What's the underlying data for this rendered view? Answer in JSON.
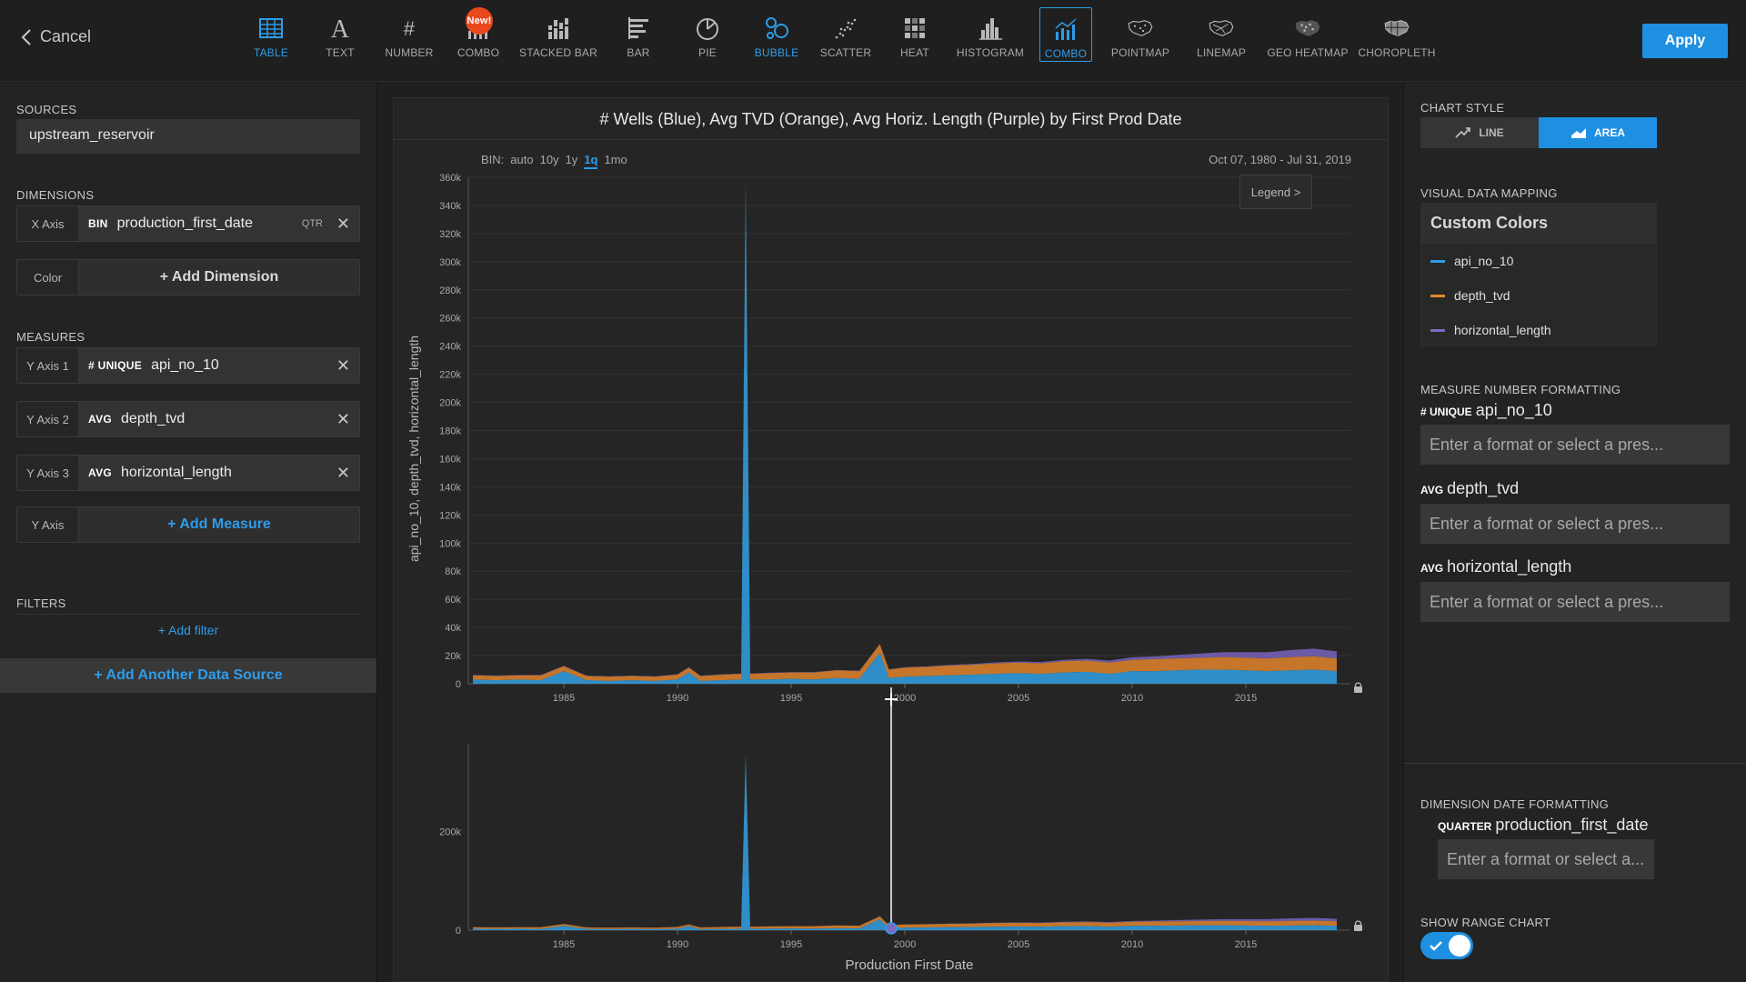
{
  "header": {
    "cancel_label": "Cancel",
    "apply_label": "Apply",
    "chart_types": [
      {
        "label": "TABLE",
        "icon": "table-icon"
      },
      {
        "label": "TEXT",
        "icon": "text-icon"
      },
      {
        "label": "NUMBER",
        "icon": "number-icon"
      },
      {
        "label": "COMBO",
        "icon": "combo-icon",
        "badge": "New!"
      },
      {
        "label": "STACKED BAR",
        "icon": "stacked-bar-icon"
      },
      {
        "label": "BAR",
        "icon": "bar-icon"
      },
      {
        "label": "PIE",
        "icon": "pie-icon"
      },
      {
        "label": "BUBBLE",
        "icon": "bubble-icon"
      },
      {
        "label": "SCATTER",
        "icon": "scatter-icon"
      },
      {
        "label": "HEAT",
        "icon": "heat-icon"
      },
      {
        "label": "HISTOGRAM",
        "icon": "histogram-icon"
      },
      {
        "label": "COMBO",
        "icon": "combo-icon"
      },
      {
        "label": "POINTMAP",
        "icon": "pointmap-icon"
      },
      {
        "label": "LINEMAP",
        "icon": "linemap-icon"
      },
      {
        "label": "GEO HEATMAP",
        "icon": "geo-heatmap-icon"
      },
      {
        "label": "CHOROPLETH",
        "icon": "choropleth-icon"
      }
    ]
  },
  "left": {
    "sources_label": "SOURCES",
    "source_name": "upstream_reservoir",
    "dimensions_label": "DIMENSIONS",
    "x_axis_slot": "X Axis",
    "x_axis_agg": "BIN",
    "x_axis_field": "production_first_date",
    "x_axis_bin": "QTR",
    "color_slot": "Color",
    "add_dimension": "+ Add Dimension",
    "measures_label": "MEASURES",
    "measures": [
      {
        "slot": "Y Axis 1",
        "agg": "# UNIQUE",
        "field": "api_no_10"
      },
      {
        "slot": "Y Axis 2",
        "agg": "AVG",
        "field": "depth_tvd"
      },
      {
        "slot": "Y Axis 3",
        "agg": "AVG",
        "field": "horizontal_length"
      }
    ],
    "y_axis_slot": "Y Axis",
    "add_measure": "+ Add Measure",
    "filters_label": "FILTERS",
    "add_filter": "+ Add filter",
    "add_source": "+ Add Another Data Source"
  },
  "chart": {
    "title": "# Wells (Blue), Avg TVD (Orange), Avg Horiz. Length (Purple) by First Prod Date",
    "bin_label": "BIN:",
    "bin_options": [
      "auto",
      "10y",
      "1y",
      "1q",
      "1mo"
    ],
    "bin_selected": "1q",
    "date_range": "Oct 07, 1980 - Jul 31, 2019",
    "legend_label": "Legend >",
    "colors": {
      "api_no_10": "#2f8ec7",
      "depth_tvd": "#c5762a",
      "horizontal_length": "#6c5aa6"
    }
  },
  "chart_data": {
    "type": "area",
    "title": "# Wells (Blue), Avg TVD (Orange), Avg Horiz. Length (Purple) by First Prod Date",
    "xlabel": "Production First Date",
    "ylabel": "api_no_10, depth_tvd, horizontal_length",
    "xlim": [
      1980.8,
      2019.6
    ],
    "ylim": [
      0,
      360000
    ],
    "x_ticks": [
      "1985",
      "1990",
      "1995",
      "2000",
      "2005",
      "2010",
      "2015"
    ],
    "y_ticks": [
      "0",
      "20k",
      "40k",
      "60k",
      "80k",
      "100k",
      "120k",
      "140k",
      "160k",
      "180k",
      "200k",
      "220k",
      "240k",
      "260k",
      "280k",
      "300k",
      "320k",
      "340k",
      "360k"
    ],
    "range_y_ticks": [
      "0",
      "200k"
    ],
    "range_ylim": [
      0,
      360000
    ],
    "stacked": true,
    "grid": true,
    "x": [
      1981,
      1982,
      1983,
      1984,
      1985,
      1986,
      1987,
      1988,
      1989,
      1990,
      1990.5,
      1991,
      1992,
      1992.8,
      1993,
      1993.2,
      1994,
      1995,
      1996,
      1997,
      1998,
      1998.9,
      1999.3,
      2000,
      2001,
      2002,
      2003,
      2004,
      2005,
      2006,
      2007,
      2008,
      2009,
      2010,
      2011,
      2012,
      2013,
      2014,
      2015,
      2016,
      2017,
      2018,
      2019
    ],
    "series": [
      {
        "name": "api_no_10",
        "values": [
          3000,
          2500,
          3000,
          2500,
          9000,
          2500,
          2000,
          2500,
          2000,
          3000,
          8000,
          2000,
          2500,
          3000,
          355000,
          3000,
          3000,
          3500,
          3000,
          4000,
          3500,
          22000,
          4000,
          5000,
          5500,
          6000,
          6500,
          7000,
          7500,
          7000,
          8000,
          8500,
          7000,
          9000,
          9000,
          9500,
          10000,
          10000,
          9500,
          9000,
          9500,
          10000,
          9000
        ]
      },
      {
        "name": "depth_tvd",
        "values": [
          3000,
          3000,
          3000,
          3500,
          3500,
          3000,
          3000,
          3000,
          3000,
          3500,
          3500,
          3500,
          4000,
          4000,
          4000,
          4000,
          4500,
          4500,
          5000,
          5500,
          5500,
          6000,
          6000,
          6500,
          6500,
          7000,
          7000,
          7500,
          7500,
          7500,
          8000,
          8000,
          8000,
          8000,
          8500,
          8500,
          8500,
          9000,
          9000,
          9000,
          9500,
          9500,
          9000
        ]
      },
      {
        "name": "horizontal_length",
        "values": [
          300,
          300,
          300,
          300,
          300,
          300,
          300,
          300,
          300,
          300,
          300,
          300,
          300,
          300,
          300,
          300,
          300,
          300,
          300,
          300,
          300,
          300,
          300,
          300,
          400,
          500,
          600,
          700,
          800,
          900,
          1000,
          1200,
          1500,
          1800,
          2000,
          2500,
          3000,
          3500,
          4000,
          4500,
          5000,
          5500,
          5000
        ]
      }
    ]
  },
  "right": {
    "chart_style_label": "CHART STYLE",
    "line_label": "LINE",
    "area_label": "AREA",
    "vdm_label": "VISUAL DATA MAPPING",
    "custom_colors_label": "Custom Colors",
    "color_items": [
      {
        "name": "api_no_10",
        "color": "#2f9ce8"
      },
      {
        "name": "depth_tvd",
        "color": "#e08a2c"
      },
      {
        "name": "horizontal_length",
        "color": "#7c6ac0"
      }
    ],
    "mnf_label": "MEASURE NUMBER FORMATTING",
    "measure_formats": [
      {
        "agg": "# UNIQUE",
        "field": "api_no_10",
        "placeholder": "Enter a format or select a pres..."
      },
      {
        "agg": "AVG",
        "field": "depth_tvd",
        "placeholder": "Enter a format or select a pres..."
      },
      {
        "agg": "AVG",
        "field": "horizontal_length",
        "placeholder": "Enter a format or select a pres..."
      }
    ],
    "ddf_label": "DIMENSION DATE FORMATTING",
    "dim_agg": "QUARTER",
    "dim_field": "production_first_date",
    "dim_placeholder": "Enter a format or select a...",
    "show_range_label": "SHOW RANGE CHART",
    "show_range_on": true
  }
}
